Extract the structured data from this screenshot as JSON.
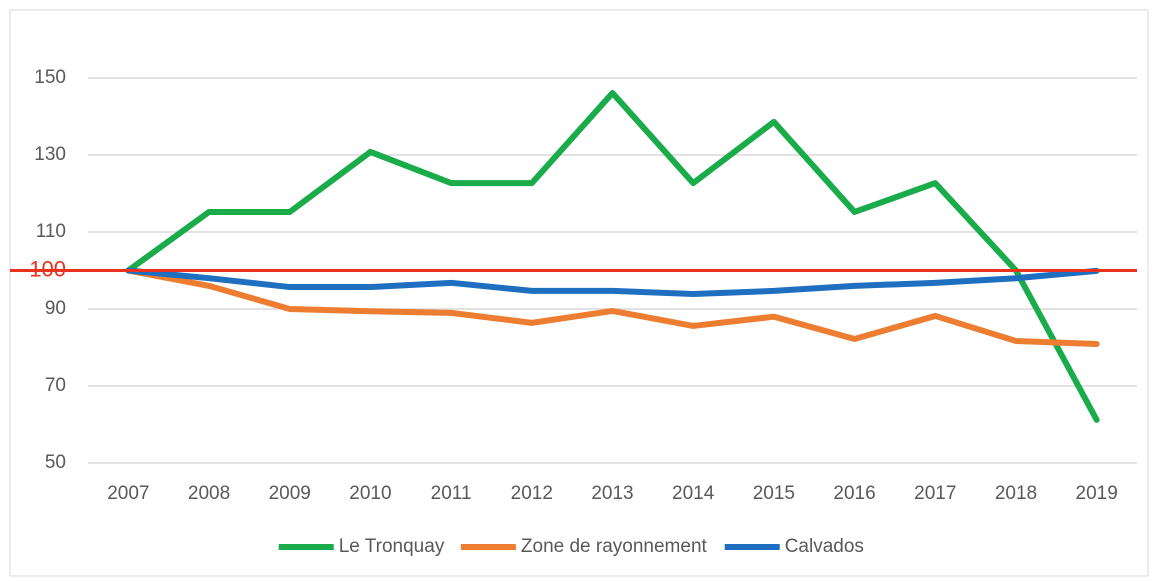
{
  "chart_data": {
    "type": "line",
    "categories": [
      "2007",
      "2008",
      "2009",
      "2010",
      "2011",
      "2012",
      "2013",
      "2014",
      "2015",
      "2016",
      "2017",
      "2018",
      "2019"
    ],
    "series": [
      {
        "name": "Le Tronquay",
        "color": "#1aab4b",
        "values": [
          100,
          115.2,
          115.2,
          130.8,
          122.7,
          122.7,
          146.1,
          122.7,
          138.6,
          115.2,
          122.7,
          100,
          61.2
        ]
      },
      {
        "name": "Zone de rayonnement",
        "color": "#ed7d31",
        "values": [
          100,
          96,
          90,
          89.4,
          89,
          86.4,
          89.5,
          85.6,
          88,
          82.2,
          88.2,
          81.7,
          80.9
        ]
      },
      {
        "name": "Calvados",
        "color": "#1f6fc1",
        "values": [
          100,
          98,
          95.7,
          95.7,
          96.8,
          94.7,
          94.7,
          93.9,
          94.7,
          96,
          96.8,
          98,
          99.9
        ]
      }
    ],
    "reference_line": {
      "value": 100,
      "color": "#e8321e"
    },
    "ylim": [
      50,
      160
    ],
    "yticks": [
      50,
      70,
      90,
      110,
      130,
      150
    ],
    "grid": true,
    "legend": "bottom"
  }
}
